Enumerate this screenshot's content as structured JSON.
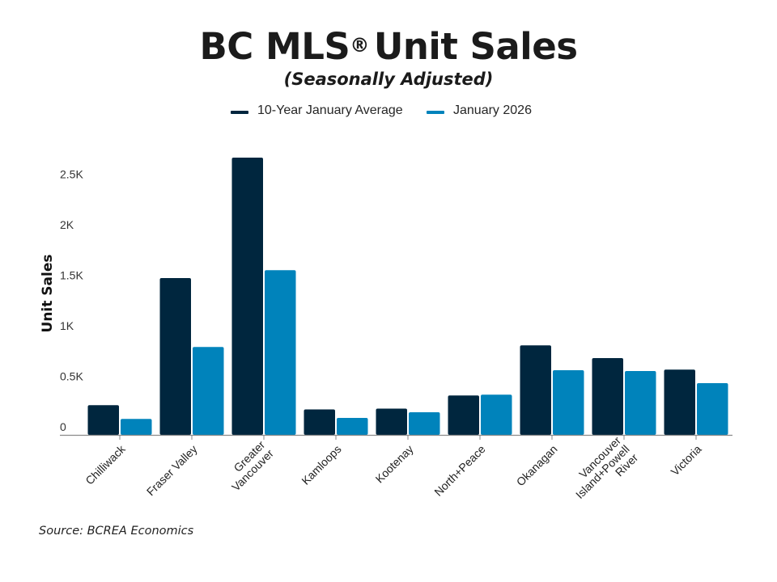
{
  "chart_data": {
    "type": "bar",
    "title": "BC MLS",
    "title_mark": "®",
    "title_suffix": "Unit Sales",
    "subtitle": "(Seasonally Adjusted)",
    "xlabel": "",
    "ylabel": "Unit Sales",
    "ylim": [
      0,
      2500
    ],
    "yticks": [
      0,
      500,
      1000,
      1500,
      2000,
      2500
    ],
    "ytick_labels": [
      "0",
      "0.5K",
      "1K",
      "1.5K",
      "2K",
      "2.5K"
    ],
    "grid": false,
    "legend_position": "top-center",
    "categories": [
      [
        "Chilliwack"
      ],
      [
        "Fraser Valley"
      ],
      [
        "Greater",
        "Vancouver"
      ],
      [
        "Kamloops"
      ],
      [
        "Kootenay"
      ],
      [
        "North+Peace"
      ],
      [
        "Okanagan"
      ],
      [
        "Vancouver",
        "Island+Powell",
        "River"
      ],
      [
        "Victoria"
      ]
    ],
    "series": [
      {
        "name": "10-Year January Average",
        "color": "#00263e",
        "values": [
          294,
          1552,
          2744,
          252,
          260,
          390,
          886,
          760,
          646
        ]
      },
      {
        "name": "January 2026",
        "color": "#0083bb",
        "values": [
          158,
          870,
          1630,
          168,
          224,
          398,
          640,
          632,
          512
        ]
      }
    ],
    "source": "Source: BCREA Economics"
  }
}
